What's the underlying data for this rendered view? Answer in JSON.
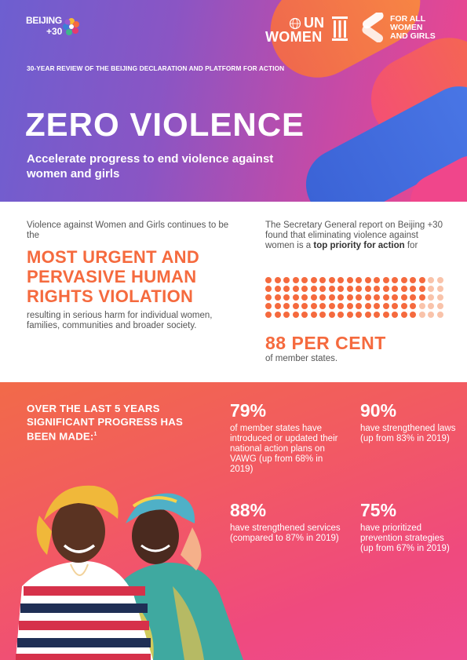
{
  "logos": {
    "beijing": {
      "line1": "BEIJING",
      "line2": "+30"
    },
    "unwomen": {
      "un": "UN",
      "women": "WOMEN"
    },
    "forall": {
      "line1": "FOR ALL",
      "line2": "WOMEN",
      "line3": "AND GIRLS"
    }
  },
  "header": {
    "review_line": "30-YEAR REVIEW OF THE BEIJING DECLARATION AND PLATFORM FOR ACTION",
    "title": "ZERO VIOLENCE",
    "subtitle": "Accelerate progress to end violence against women and girls"
  },
  "middle": {
    "intro": "Violence against Women and Girls continues to be the",
    "headline": "MOST URGENT AND PERVASIVE HUMAN RIGHTS VIOLATION",
    "outro": "resulting in serious harm for individual women, families, communities and broader society.",
    "report_text": "The Secretary General report on Beijing +30 found that eliminating violence against women is a",
    "report_bold": "top priority for action",
    "report_end": "for",
    "percent": "88 PER CENT",
    "percent_value": 88,
    "member_states": "of member states.",
    "dot_colors": {
      "filled": "#f56a3e",
      "empty": "#f9c3aa"
    }
  },
  "bottom": {
    "heading": "OVER THE LAST 5 YEARS SIGNIFICANT PROGRESS HAS BEEN MADE:",
    "heading_note": "1",
    "stats": [
      {
        "pct": "79%",
        "desc": "of member states have introduced or updated their national action plans on VAWG (up from 68% in 2019)"
      },
      {
        "pct": "90%",
        "desc": "have strengthened laws (up from 83% in 2019)"
      },
      {
        "pct": "88%",
        "desc": "have strengthened services (compared to 87% in 2019)"
      },
      {
        "pct": "75%",
        "desc": "have prioritized prevention strategies (up from 67% in 2019)"
      }
    ]
  }
}
